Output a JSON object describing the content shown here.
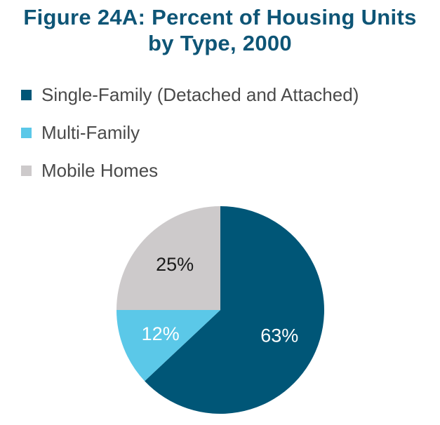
{
  "chart_data": {
    "type": "pie",
    "title_lines": [
      "Figure 24A: Percent of Housing Units",
      "by Type, 2000"
    ],
    "categories": [
      "Single-Family (Detached and Attached)",
      "Multi-Family",
      "Mobile Homes"
    ],
    "values": [
      63,
      12,
      25
    ],
    "labels": [
      "63%",
      "12%",
      "25%"
    ],
    "colors": [
      "#005677",
      "#5bc8e8",
      "#cdcacb"
    ],
    "label_colors": [
      "#ffffff",
      "#ffffff",
      "#1a1a1a"
    ],
    "legend_position": "top-left",
    "start_angle_deg": 0,
    "direction": "clockwise"
  }
}
